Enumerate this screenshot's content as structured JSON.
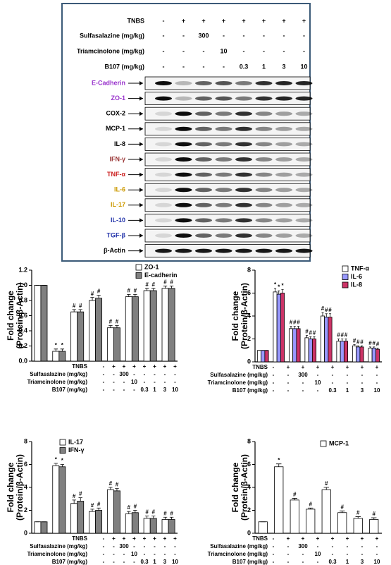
{
  "blot": {
    "treatments": [
      {
        "label": "TNBS",
        "cells": [
          "-",
          "+",
          "+",
          "+",
          "+",
          "+",
          "+",
          "+"
        ]
      },
      {
        "label": "Sulfasalazine (mg/kg)",
        "cells": [
          "-",
          "-",
          "300",
          "-",
          "-",
          "-",
          "-",
          "-"
        ]
      },
      {
        "label": "Triamcinolone (mg/kg)",
        "cells": [
          "-",
          "-",
          "-",
          "10",
          "-",
          "-",
          "-",
          "-"
        ]
      },
      {
        "label": "B107 (mg/kg)",
        "cells": [
          "-",
          "-",
          "-",
          "-",
          "0.3",
          "1",
          "3",
          "10"
        ]
      }
    ],
    "rows": [
      {
        "label": "E-Cadherin",
        "color": "#9933cc"
      },
      {
        "label": "ZO-1",
        "color": "#9933cc"
      },
      {
        "label": "COX-2",
        "color": "#000000"
      },
      {
        "label": "MCP-1",
        "color": "#000000"
      },
      {
        "label": "IL-8",
        "color": "#000000"
      },
      {
        "label": "IFN-γ",
        "color": "#993333"
      },
      {
        "label": "TNF-α",
        "color": "#cc2222"
      },
      {
        "label": "IL-6",
        "color": "#cc9900"
      },
      {
        "label": "IL-17",
        "color": "#cc9900"
      },
      {
        "label": "IL-10",
        "color": "#2233aa"
      },
      {
        "label": "TGF-β",
        "color": "#2233aa"
      },
      {
        "label": "β-Actin",
        "color": "#000000"
      }
    ]
  },
  "chart_data": [
    {
      "type": "bar",
      "y_label": [
        "Fold change",
        "(Protein/β-Actin)"
      ],
      "ylim": [
        0,
        1.2
      ],
      "yticks": [
        {
          "value": 0,
          "label": "0.0"
        },
        {
          "value": 0.2,
          "label": "0.2"
        },
        {
          "value": 0.4,
          "label": "0.4"
        },
        {
          "value": 0.6,
          "label": "0.6"
        },
        {
          "value": 0.8,
          "label": "0.8"
        },
        {
          "value": 1,
          "label": "1.0"
        },
        {
          "value": 1.2,
          "label": "1.2"
        }
      ],
      "series": [
        {
          "name": "ZO-1",
          "color": "#ffffff",
          "values": [
            1.0,
            0.13,
            0.65,
            0.8,
            0.44,
            0.85,
            0.93,
            0.96
          ],
          "errors": [
            0,
            0.03,
            0.03,
            0.04,
            0.03,
            0.03,
            0.03,
            0.03
          ],
          "marks": [
            null,
            "*",
            "#",
            "#",
            "#",
            "#",
            "#",
            "#"
          ]
        },
        {
          "name": "E-cadherin",
          "color": "#808080",
          "values": [
            1.0,
            0.13,
            0.65,
            0.83,
            0.44,
            0.85,
            0.93,
            0.96
          ],
          "errors": [
            0,
            0.03,
            0.03,
            0.04,
            0.03,
            0.03,
            0.03,
            0.03
          ],
          "marks": [
            null,
            "*",
            "#",
            "#",
            "#",
            "#",
            "#",
            "#"
          ]
        }
      ],
      "treatments": [
        {
          "label": "TNBS",
          "cells": [
            "-",
            "+",
            "+",
            "+",
            "+",
            "+",
            "+",
            "+"
          ]
        },
        {
          "label": "Sulfasalazine (mg/kg)",
          "cells": [
            "-",
            "-",
            "300",
            "-",
            "-",
            "-",
            "-",
            "-"
          ]
        },
        {
          "label": "Triamcinolone (mg/kg)",
          "cells": [
            "-",
            "-",
            "-",
            "10",
            "-",
            "-",
            "-",
            "-"
          ]
        },
        {
          "label": "B107 (mg/kg)",
          "cells": [
            "-",
            "-",
            "-",
            "-",
            "0.3",
            "1",
            "3",
            "10"
          ]
        }
      ]
    },
    {
      "type": "bar",
      "y_label": [
        "Fold change",
        "(Protein/β-Actin)"
      ],
      "ylim": [
        0,
        8
      ],
      "yticks": [
        0,
        2,
        4,
        6,
        8
      ],
      "series": [
        {
          "name": "TNF-α",
          "color": "#ffffff",
          "values": [
            1.0,
            6.1,
            2.9,
            2.1,
            4.0,
            1.8,
            1.4,
            1.2
          ],
          "errors": [
            0,
            0.3,
            0.2,
            0.2,
            0.3,
            0.2,
            0.1,
            0.1
          ],
          "marks": [
            null,
            "*",
            "#",
            "#",
            "#",
            "#",
            "#",
            "#"
          ]
        },
        {
          "name": "IL-6",
          "color": "#9999ff",
          "values": [
            1.0,
            5.9,
            2.9,
            2.0,
            3.9,
            1.8,
            1.3,
            1.2
          ],
          "errors": [
            0,
            0.3,
            0.2,
            0.2,
            0.3,
            0.2,
            0.1,
            0.1
          ],
          "marks": [
            null,
            "*",
            "#",
            "#",
            "#",
            "#",
            "#",
            "#"
          ]
        },
        {
          "name": "IL-8",
          "color": "#cc3366",
          "values": [
            1.0,
            6.0,
            2.9,
            2.0,
            3.9,
            1.8,
            1.3,
            1.1
          ],
          "errors": [
            0,
            0.3,
            0.2,
            0.2,
            0.3,
            0.2,
            0.1,
            0.1
          ],
          "marks": [
            null,
            "*",
            "#",
            "#",
            "#",
            "#",
            "#",
            "#"
          ]
        }
      ],
      "treatments": [
        {
          "label": "TNBS",
          "cells": [
            "-",
            "+",
            "+",
            "+",
            "+",
            "+",
            "+",
            "+"
          ]
        },
        {
          "label": "Sulfasalazine (mg/kg)",
          "cells": [
            "-",
            "-",
            "300",
            "-",
            "-",
            "-",
            "-",
            "-"
          ]
        },
        {
          "label": "Triamcinolone (mg/kg)",
          "cells": [
            "-",
            "-",
            "-",
            "10",
            "-",
            "-",
            "-",
            "-"
          ]
        },
        {
          "label": "B107 (mg/kg)",
          "cells": [
            "-",
            "-",
            "-",
            "-",
            "0.3",
            "1",
            "3",
            "10"
          ]
        }
      ]
    },
    {
      "type": "bar",
      "y_label": [
        "Fold change",
        "(Protein/β-Actin)"
      ],
      "ylim": [
        0,
        8
      ],
      "yticks": [
        0,
        2,
        4,
        6,
        8
      ],
      "series": [
        {
          "name": "IL-17",
          "color": "#ffffff",
          "values": [
            1.0,
            5.9,
            2.6,
            1.9,
            3.8,
            1.7,
            1.3,
            1.2
          ],
          "errors": [
            0,
            0.2,
            0.3,
            0.2,
            0.2,
            0.2,
            0.2,
            0.2
          ],
          "marks": [
            null,
            "*",
            "#",
            "#",
            "#",
            "#",
            "#",
            "#"
          ]
        },
        {
          "name": "IFN-γ",
          "color": "#808080",
          "values": [
            1.0,
            5.8,
            2.8,
            2.0,
            3.7,
            1.8,
            1.3,
            1.2
          ],
          "errors": [
            0,
            0.2,
            0.3,
            0.2,
            0.2,
            0.2,
            0.2,
            0.2
          ],
          "marks": [
            null,
            "*",
            "#",
            "#",
            "#",
            "#",
            "#",
            "#"
          ]
        }
      ],
      "treatments": [
        {
          "label": "TNBS",
          "cells": [
            "-",
            "+",
            "+",
            "+",
            "+",
            "+",
            "+",
            "+"
          ]
        },
        {
          "label": "Sulfasalazine (mg/kg)",
          "cells": [
            "-",
            "-",
            "300",
            "-",
            "-",
            "-",
            "-",
            "-"
          ]
        },
        {
          "label": "Triamcinolone (mg/kg)",
          "cells": [
            "-",
            "-",
            "-",
            "10",
            "-",
            "-",
            "-",
            "-"
          ]
        },
        {
          "label": "B107 (mg/kg)",
          "cells": [
            "-",
            "-",
            "-",
            "-",
            "0.3",
            "1",
            "3",
            "10"
          ]
        }
      ]
    },
    {
      "type": "bar",
      "y_label": [
        "Fold change",
        "(Protein/β-Actin)"
      ],
      "ylim": [
        0,
        8
      ],
      "yticks": [
        0,
        2,
        4,
        6,
        8
      ],
      "series": [
        {
          "name": "MCP-1",
          "color": "#ffffff",
          "values": [
            1.0,
            5.8,
            2.9,
            2.1,
            3.8,
            1.8,
            1.3,
            1.2
          ],
          "errors": [
            0,
            0.25,
            0.15,
            0.1,
            0.2,
            0.15,
            0.15,
            0.15
          ],
          "marks": [
            null,
            "*",
            "#",
            "#",
            "#",
            "#",
            "#",
            "#"
          ]
        }
      ],
      "treatments": [
        {
          "label": "TNBS",
          "cells": [
            "-",
            "+",
            "+",
            "+",
            "+",
            "+",
            "+",
            "+"
          ]
        },
        {
          "label": "Sulfasalazine (mg/kg)",
          "cells": [
            "-",
            "-",
            "300",
            "-",
            "-",
            "-",
            "-",
            "-"
          ]
        },
        {
          "label": "Triamcinolone (mg/kg)",
          "cells": [
            "-",
            "-",
            "-",
            "10",
            "-",
            "-",
            "-",
            "-"
          ]
        },
        {
          "label": "B107 (mg/kg)",
          "cells": [
            "-",
            "-",
            "-",
            "-",
            "0.3",
            "1",
            "3",
            "10"
          ]
        }
      ]
    }
  ]
}
